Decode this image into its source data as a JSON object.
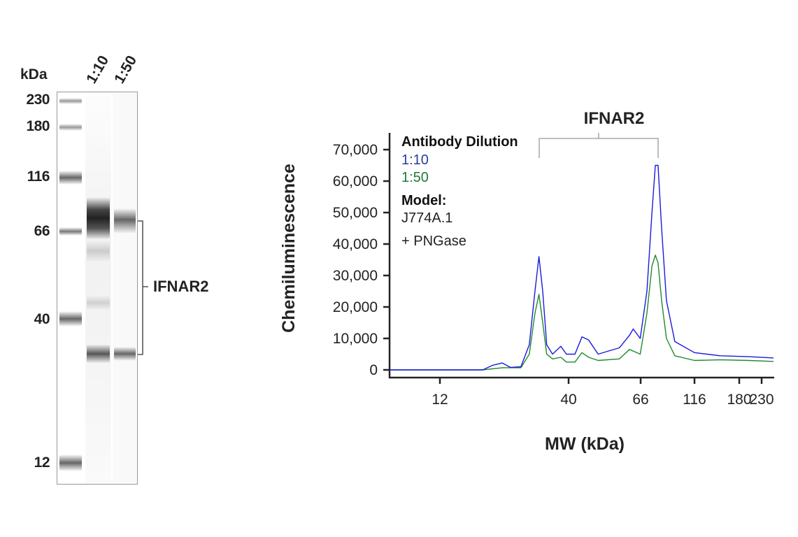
{
  "blot": {
    "unit_label": "kDa",
    "lane_labels": [
      "1:10",
      "1:50"
    ],
    "markers": [
      "230",
      "180",
      "116",
      "66",
      "40",
      "12"
    ],
    "target_label": "IFNAR2"
  },
  "chart_data": {
    "type": "line",
    "title": "IFNAR2",
    "xlabel": "MW (kDa)",
    "ylabel": "Chemiluminescence",
    "x_scale": "log (kDa)",
    "x_ticks": [
      12,
      40,
      66,
      116,
      180,
      230
    ],
    "x_tick_labels": [
      "12",
      "40",
      "66",
      "116",
      "180",
      "230"
    ],
    "ylim": [
      0,
      70000
    ],
    "y_ticks": [
      0,
      10000,
      20000,
      30000,
      40000,
      50000,
      60000,
      70000
    ],
    "y_tick_labels": [
      "0",
      "10,000",
      "20,000",
      "30,000",
      "40,000",
      "50,000",
      "60,000",
      "70,000"
    ],
    "grid": false,
    "legend": {
      "placement": "top-left",
      "title": "Antibody Dilution",
      "model_title": "Model:",
      "model_lines": [
        "J774A.1",
        "+ PNGase"
      ]
    },
    "series": [
      {
        "name": "1:10",
        "color": "#1a1adf",
        "x": [
          7.5,
          17.9,
          19.7,
          21.5,
          23.2,
          25.6,
          27.7,
          29.2,
          30.3,
          31.4,
          32.6,
          34.4,
          37.2,
          39.2,
          41.8,
          43.9,
          46.0,
          49.1,
          52.8,
          56.9,
          61.1,
          62.7,
          65.8,
          70.5,
          74.3,
          77.0,
          79.2,
          82.2,
          86.5,
          94.4,
          115.9,
          149,
          199,
          262
        ],
        "y": [
          0,
          0,
          1500,
          2200,
          800,
          1000,
          8000,
          25000,
          36000,
          25000,
          8000,
          5000,
          7500,
          5000,
          5000,
          10500,
          9500,
          5000,
          6000,
          7000,
          11000,
          13000,
          10000,
          25000,
          50000,
          65000,
          65000,
          45000,
          22000,
          9000,
          5500,
          4500,
          4200,
          3800
        ]
      },
      {
        "name": "1:50",
        "color": "#1f8a2e",
        "x": [
          7.5,
          17.9,
          21.5,
          25.6,
          27.7,
          29.2,
          30.3,
          31.4,
          32.6,
          34.4,
          37.2,
          39.2,
          41.8,
          43.9,
          46.0,
          49.1,
          56.9,
          61.1,
          65.8,
          70.5,
          74.3,
          77.0,
          79.2,
          82.2,
          86.5,
          94.4,
          115.9,
          149,
          199,
          262
        ],
        "y": [
          0,
          0,
          700,
          700,
          5000,
          18000,
          24000,
          15000,
          5000,
          3500,
          4000,
          2500,
          2500,
          5500,
          4000,
          3000,
          3500,
          6500,
          5000,
          18000,
          33000,
          36500,
          34000,
          22000,
          10000,
          4500,
          3000,
          3200,
          3000,
          2700
        ]
      }
    ]
  }
}
